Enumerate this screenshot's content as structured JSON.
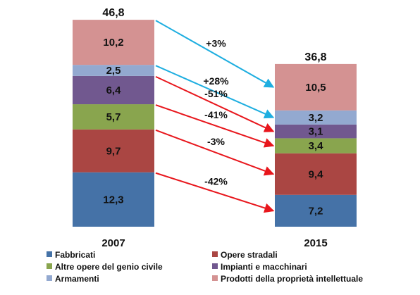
{
  "chart_data": {
    "type": "bar",
    "stacked": true,
    "categories": [
      "2007",
      "2015"
    ],
    "totals": [
      "46,8",
      "36,8"
    ],
    "series": [
      {
        "name": "Fabbricati",
        "color": "#4572A7",
        "values": [
          12.3,
          7.2
        ],
        "labels": [
          "12,3",
          "7,2"
        ]
      },
      {
        "name": "Opere stradali",
        "color": "#AA4643",
        "values": [
          9.7,
          9.4
        ],
        "labels": [
          "9,7",
          "9,4"
        ]
      },
      {
        "name": "Altre opere del genio civile",
        "color": "#89A54E",
        "values": [
          5.7,
          3.4
        ],
        "labels": [
          "5,7",
          "3,4"
        ]
      },
      {
        "name": "Impianti e macchinari",
        "color": "#71588F",
        "values": [
          6.4,
          3.1
        ],
        "labels": [
          "6,4",
          "3,1"
        ]
      },
      {
        "name": "Armamenti",
        "color": "#93A9D0",
        "values": [
          2.5,
          3.2
        ],
        "labels": [
          "2,5",
          "3,2"
        ]
      },
      {
        "name": "Prodotti della proprietà intellettuale",
        "color": "#D49292",
        "values": [
          10.2,
          10.5
        ],
        "labels": [
          "10,2",
          "10,5"
        ]
      }
    ],
    "changes": [
      {
        "series": "Prodotti della proprietà intellettuale",
        "label": "+3%",
        "color": "#1EAEE0"
      },
      {
        "series": "Armamenti",
        "label": "+28%",
        "color": "#1EAEE0"
      },
      {
        "series": "Impianti e macchinari",
        "label": "-51%",
        "color": "#E8161C"
      },
      {
        "series": "Altre opere del genio civile",
        "label": "-41%",
        "color": "#E8161C"
      },
      {
        "series": "Opere stradali",
        "label": "-3%",
        "color": "#E8161C"
      },
      {
        "series": "Fabbricati",
        "label": "-42%",
        "color": "#E8161C"
      }
    ],
    "legend_position": "bottom",
    "grid": false
  }
}
